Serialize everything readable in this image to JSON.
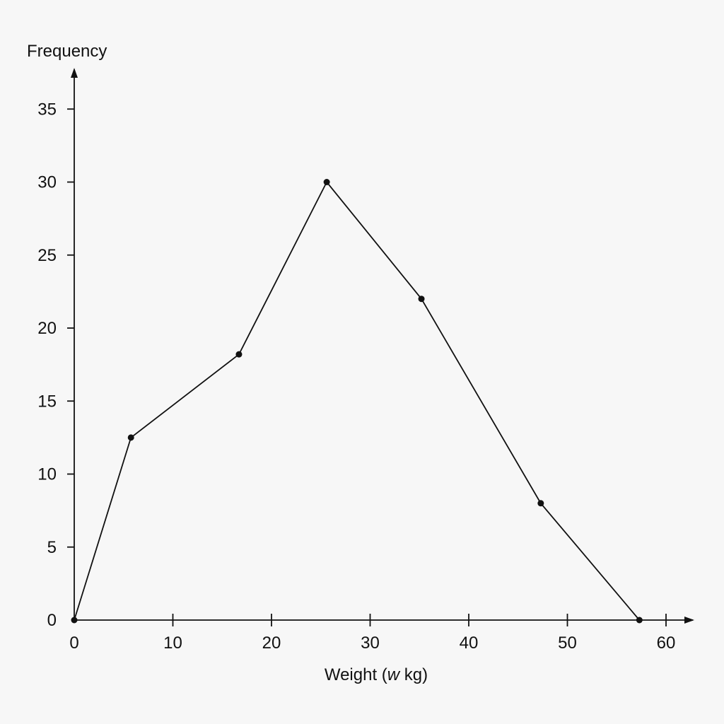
{
  "chart_data": {
    "type": "line",
    "title": "",
    "ylabel": "Frequency",
    "xlabel": {
      "prefix": "Weight (",
      "variable": "w",
      "suffix": " kg)"
    },
    "xlim": [
      0,
      60
    ],
    "ylim": [
      0,
      37
    ],
    "x_ticks": [
      0,
      10,
      20,
      30,
      40,
      50,
      60
    ],
    "y_ticks": [
      0,
      5,
      10,
      15,
      20,
      25,
      30,
      35
    ],
    "grid": false,
    "series": [
      {
        "x": [
          0,
          5.75,
          16.7,
          25.6,
          35.2,
          47.3,
          57.3
        ],
        "y": [
          0,
          12.5,
          18.2,
          30,
          22,
          8,
          0
        ]
      }
    ]
  }
}
